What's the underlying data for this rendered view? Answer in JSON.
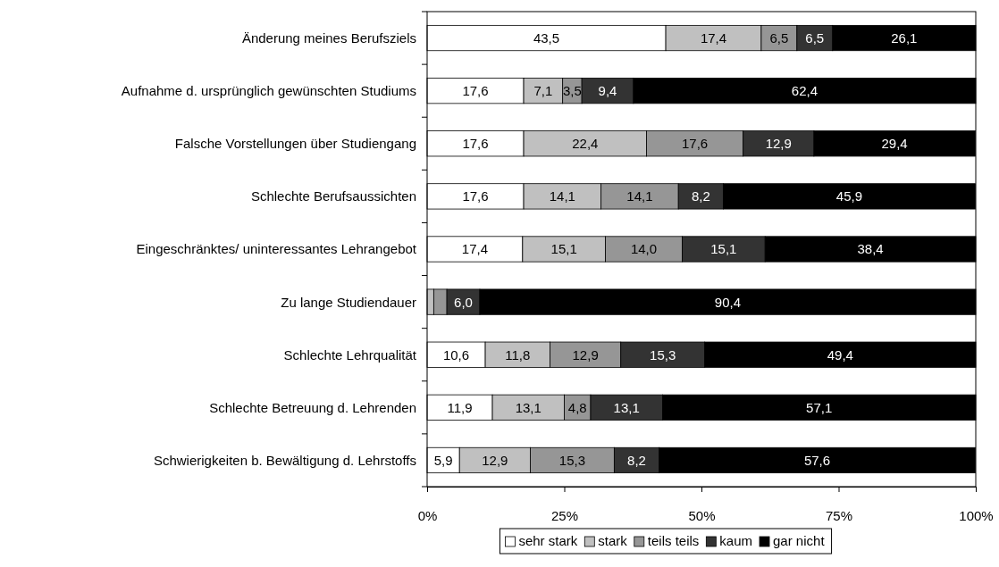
{
  "chart_data": {
    "type": "bar",
    "orientation": "horizontal",
    "stacked": true,
    "categories": [
      "Änderung meines Berufsziels",
      "Aufnahme d. ursprünglich gewünschten  Studiums",
      "Falsche Vorstellungen über Studiengang",
      "Schlechte Berufsaussichten",
      "Eingeschränktes/ uninteressantes Lehrangebot",
      "Zu lange Studiendauer",
      "Schlechte Lehrqualität",
      "Schlechte Betreuung d. Lehrenden",
      "Schwierigkeiten b. Bewältigung d. Lehrstoffs"
    ],
    "series": [
      {
        "name": "sehr stark",
        "color": "#ffffff",
        "values": [
          43.5,
          17.6,
          17.6,
          17.6,
          17.4,
          null,
          10.6,
          11.9,
          5.9
        ],
        "value_labels": [
          "43,5",
          "17,6",
          "17,6",
          "17,6",
          "17,4",
          null,
          "10,6",
          "11,9",
          "5,9"
        ]
      },
      {
        "name": "stark",
        "color": "#c0c0c0",
        "values": [
          17.4,
          7.1,
          22.4,
          14.1,
          15.1,
          1.2,
          11.8,
          13.1,
          12.9
        ],
        "value_labels": [
          "17,4",
          "7,1",
          "22,4",
          "14,1",
          "15,1",
          null,
          "11,8",
          "13,1",
          "12,9"
        ]
      },
      {
        "name": "teils teils",
        "color": "#969696",
        "values": [
          6.5,
          3.5,
          17.6,
          14.1,
          14.0,
          2.4,
          12.9,
          4.8,
          15.3
        ],
        "value_labels": [
          "6,5",
          "3,5",
          "17,6",
          "14,1",
          "14,0",
          null,
          "12,9",
          "4,8",
          "15,3"
        ]
      },
      {
        "name": "kaum",
        "color": "#333333",
        "values": [
          6.5,
          9.4,
          12.9,
          8.2,
          15.1,
          6.0,
          15.3,
          13.1,
          8.2
        ],
        "value_labels": [
          "6,5",
          "9,4",
          "12,9",
          "8,2",
          "15,1",
          "6,0",
          "15,3",
          "13,1",
          "8,2"
        ]
      },
      {
        "name": "gar nicht",
        "color": "#000000",
        "values": [
          26.1,
          62.4,
          29.4,
          45.9,
          38.4,
          90.4,
          49.4,
          57.1,
          57.6
        ],
        "value_labels": [
          "26,1",
          "62,4",
          "29,4",
          "45,9",
          "38,4",
          "90,4",
          "49,4",
          "57,1",
          "57,6"
        ]
      }
    ],
    "xlim": [
      0,
      100
    ],
    "xticks": [
      {
        "value": 0,
        "label": "0%"
      },
      {
        "value": 25,
        "label": "25%"
      },
      {
        "value": 50,
        "label": "50%"
      },
      {
        "value": 75,
        "label": "75%"
      },
      {
        "value": 100,
        "label": "100%"
      }
    ],
    "grid": false,
    "legend": "bottom"
  }
}
